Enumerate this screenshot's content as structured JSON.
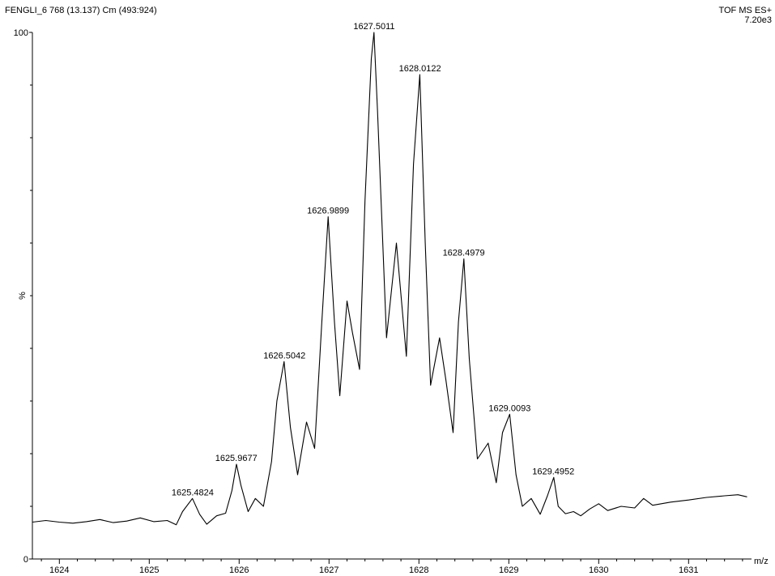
{
  "header": {
    "scan_info": "FENGLI_6 768 (13.137) Cm (493:924)",
    "mode": "TOF MS ES+",
    "intensity": "7.20e3"
  },
  "chart_data": {
    "type": "line",
    "title": "",
    "xlabel": "m/z",
    "ylabel": "%",
    "xlim": [
      1623.7,
      1631.7
    ],
    "ylim": [
      0,
      100
    ],
    "x_ticks": [
      1624,
      1625,
      1626,
      1627,
      1628,
      1629,
      1630,
      1631
    ],
    "y_tick_labels": [
      {
        "value": 100,
        "label": "100"
      },
      {
        "value": 0,
        "label": "0"
      }
    ],
    "grid": false,
    "series": [
      {
        "values_x": [
          1623.7,
          1623.85,
          1624.0,
          1624.15,
          1624.3,
          1624.45,
          1624.6,
          1624.75,
          1624.9,
          1625.05,
          1625.2,
          1625.3,
          1625.37,
          1625.48,
          1625.56,
          1625.64,
          1625.75,
          1625.85,
          1625.92,
          1625.97,
          1626.02,
          1626.1,
          1626.18,
          1626.27,
          1626.36,
          1626.42,
          1626.5,
          1626.57,
          1626.65,
          1626.75,
          1626.84,
          1626.92,
          1626.99,
          1627.06,
          1627.12,
          1627.2,
          1627.26,
          1627.34,
          1627.4,
          1627.47,
          1627.5,
          1627.54,
          1627.64,
          1627.75,
          1627.86,
          1627.94,
          1628.01,
          1628.07,
          1628.13,
          1628.23,
          1628.3,
          1628.38,
          1628.44,
          1628.5,
          1628.56,
          1628.65,
          1628.77,
          1628.86,
          1628.93,
          1629.01,
          1629.08,
          1629.15,
          1629.25,
          1629.35,
          1629.43,
          1629.5,
          1629.55,
          1629.63,
          1629.72,
          1629.8,
          1629.9,
          1630.0,
          1630.1,
          1630.25,
          1630.4,
          1630.5,
          1630.6,
          1630.8,
          1631.0,
          1631.2,
          1631.4,
          1631.55,
          1631.65
        ],
        "values_y": [
          7.0,
          7.3,
          7.0,
          6.8,
          7.1,
          7.5,
          6.9,
          7.2,
          7.8,
          7.1,
          7.3,
          6.5,
          9.0,
          11.5,
          8.5,
          6.6,
          8.2,
          8.7,
          13.0,
          18.0,
          14.0,
          9.0,
          11.5,
          10.0,
          18.5,
          30.0,
          37.5,
          25.0,
          16.0,
          26.0,
          21.0,
          45.0,
          65.0,
          45.0,
          31.0,
          49.0,
          43.0,
          36.0,
          68.0,
          95.0,
          100.0,
          85.0,
          42.0,
          60.0,
          38.5,
          75.0,
          92.0,
          60.0,
          33.0,
          42.0,
          34.0,
          24.0,
          45.0,
          57.0,
          38.0,
          19.0,
          22.0,
          14.5,
          24.0,
          27.5,
          16.0,
          10.0,
          11.5,
          8.5,
          12.0,
          15.5,
          10.0,
          8.6,
          9.0,
          8.2,
          9.5,
          10.5,
          9.2,
          10.0,
          9.7,
          11.5,
          10.2,
          10.8,
          11.2,
          11.7,
          12.0,
          12.2,
          11.8
        ]
      }
    ],
    "peak_labels": [
      {
        "mz": 1625.4824,
        "label": "1625.4824",
        "y": 11.5
      },
      {
        "mz": 1625.9677,
        "label": "1625.9677",
        "y": 18.0
      },
      {
        "mz": 1626.5042,
        "label": "1626.5042",
        "y": 37.5
      },
      {
        "mz": 1626.9899,
        "label": "1626.9899",
        "y": 65.0
      },
      {
        "mz": 1627.5011,
        "label": "1627.5011",
        "y": 100.0
      },
      {
        "mz": 1628.0122,
        "label": "1628.0122",
        "y": 92.0
      },
      {
        "mz": 1628.4979,
        "label": "1628.4979",
        "y": 57.0
      },
      {
        "mz": 1629.0093,
        "label": "1629.0093",
        "y": 27.5
      },
      {
        "mz": 1629.4952,
        "label": "1629.4952",
        "y": 15.5
      }
    ]
  }
}
